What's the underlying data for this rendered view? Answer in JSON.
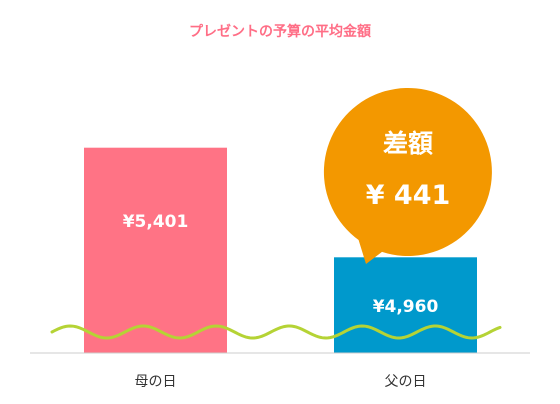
{
  "chart_data": {
    "type": "bar",
    "title": "プレゼントの予算の平均金額",
    "categories": [
      "母の日",
      "父の日"
    ],
    "values": [
      5401,
      4960
    ],
    "value_labels": [
      "¥5,401",
      "¥4,960"
    ],
    "colors": [
      "#ff7385",
      "#0099cc"
    ],
    "axis_break": true,
    "callout": {
      "title": "差額",
      "value": 441,
      "value_label": "¥ 441",
      "color": "#f39800"
    }
  },
  "colors": {
    "title": "#ff6e86",
    "wave": "#b5d335",
    "baseline": "#cccccc",
    "bar_label": "#ffffff",
    "category_label": "#333333"
  }
}
